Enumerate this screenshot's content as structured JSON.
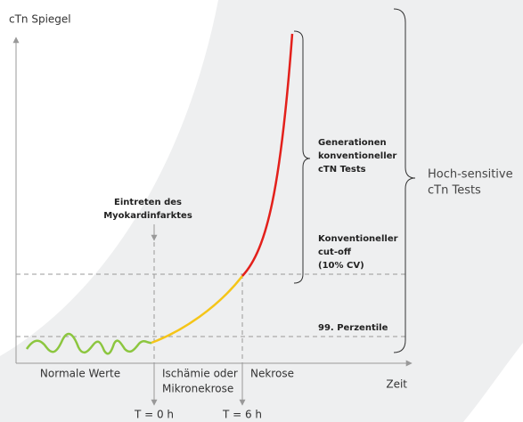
{
  "y_axis_label": "cTn Spiegel",
  "x_axis_label": "Zeit",
  "phases": [
    "Normale Werte",
    [
      "Ischämie oder",
      "Mikronekrose"
    ],
    "Nekrose"
  ],
  "time_marks": [
    "T = 0 h",
    "T = 6 h"
  ],
  "onset": [
    "Eintreten des",
    "Myokardinfarktes"
  ],
  "generations": [
    "Generationen",
    "konventioneller",
    "cTN Tests"
  ],
  "cutoff": [
    "Konventioneller",
    "cut-off",
    "(10% CV)"
  ],
  "percentile": "99. Perzentile",
  "high_sensitive": [
    "Hoch-sensitive",
    "cTn Tests"
  ]
}
